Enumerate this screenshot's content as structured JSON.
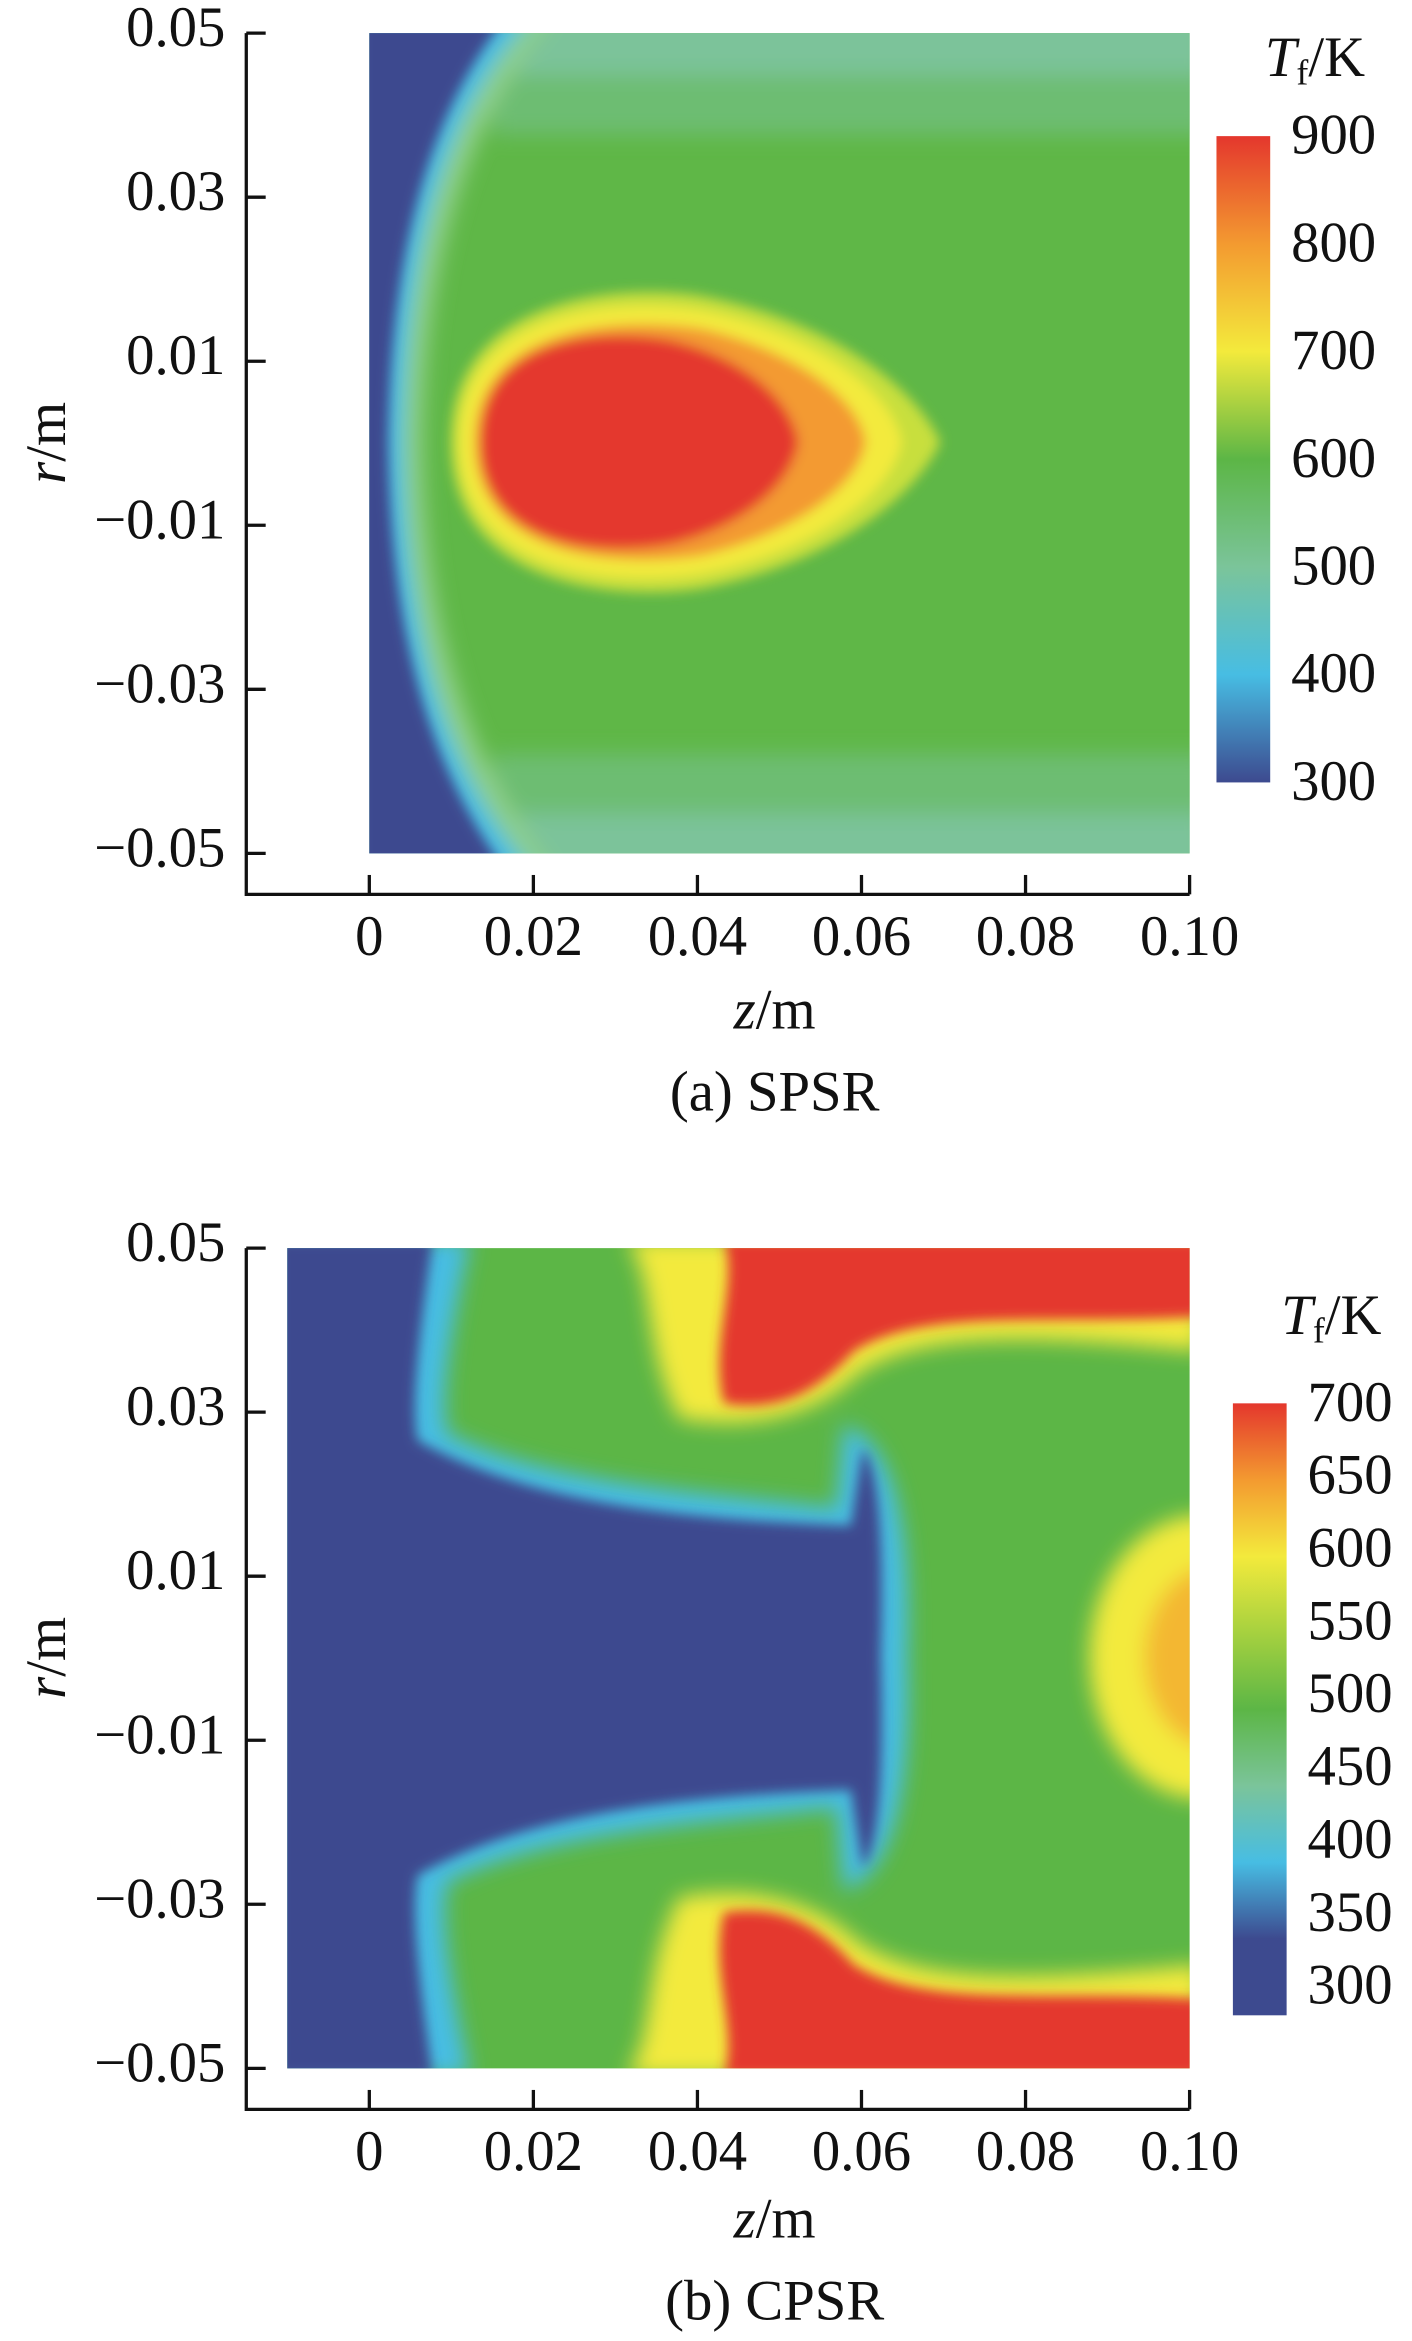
{
  "chart_data": [
    {
      "type": "heatmap",
      "xlabel": {
        "symbol": "z",
        "unit": "/m"
      },
      "ylabel": {
        "symbol": "r",
        "unit": "/m"
      },
      "caption": "(a) SPSR",
      "xlim": [
        -0.015,
        0.1
      ],
      "ylim": [
        -0.055,
        0.05
      ],
      "field_xlim": [
        0,
        0.1
      ],
      "field_ylim": [
        -0.05,
        0.05
      ],
      "xticks": [
        0,
        0.02,
        0.04,
        0.06,
        0.08,
        {
          "value": 0.1,
          "label": "0.10"
        }
      ],
      "yticks": [
        {
          "value": -0.05,
          "label": "−0.05"
        },
        {
          "value": -0.03,
          "label": "−0.03"
        },
        {
          "value": -0.01,
          "label": "−0.01"
        },
        0.01,
        0.03,
        0.05
      ],
      "colorbar": {
        "symbol": "T",
        "subscript": "f",
        "unit": "/K",
        "lim": [
          300,
          900
        ],
        "ticks": [
          300,
          400,
          500,
          600,
          700,
          800,
          900
        ]
      },
      "colormap": [
        "#3d4a8f",
        "#47bde3",
        "#7bc49a",
        "#5cb646",
        "#f3ea3c",
        "#f39a30",
        "#e4372d"
      ]
    },
    {
      "type": "heatmap",
      "xlabel": {
        "symbol": "z",
        "unit": "/m"
      },
      "ylabel": {
        "symbol": "r",
        "unit": "/m"
      },
      "caption": "(b) CPSR",
      "xlim": [
        -0.015,
        0.1
      ],
      "ylim": [
        -0.055,
        0.05
      ],
      "field_xlim": [
        -0.01,
        0.1
      ],
      "field_ylim": [
        -0.05,
        0.05
      ],
      "xticks": [
        0,
        0.02,
        0.04,
        0.06,
        0.08,
        {
          "value": 0.1,
          "label": "0.10"
        }
      ],
      "yticks": [
        {
          "value": -0.05,
          "label": "−0.05"
        },
        {
          "value": -0.03,
          "label": "−0.03"
        },
        {
          "value": -0.01,
          "label": "−0.01"
        },
        0.01,
        0.03,
        0.05
      ],
      "colorbar": {
        "symbol": "T",
        "subscript": "f",
        "unit": "/K",
        "lim": [
          280,
          700
        ],
        "ticks": [
          300,
          350,
          400,
          450,
          500,
          550,
          600,
          650,
          700
        ]
      },
      "colormap": [
        "#3d4a8f",
        "#3d4a8f",
        "#47bde3",
        "#7bc49a",
        "#5cb646",
        "#a6d13f",
        "#f3ea3c",
        "#f39a30",
        "#e4372d"
      ]
    }
  ]
}
